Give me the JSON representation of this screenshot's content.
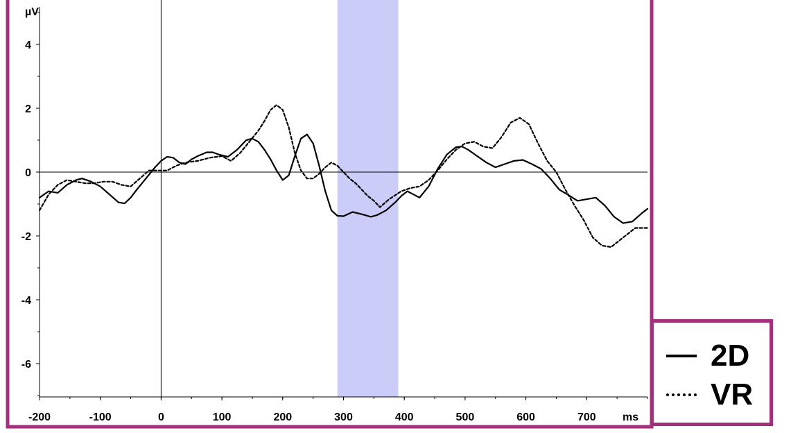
{
  "chart_data": {
    "type": "line",
    "xlabel": "ms",
    "ylabel": "µV",
    "xlim": [
      -200,
      800
    ],
    "ylim": [
      -7,
      5.3
    ],
    "x_ticks": [
      "-200",
      "-100",
      "0",
      "100",
      "200",
      "300",
      "400",
      "500",
      "600",
      "700"
    ],
    "y_ticks": [
      "4",
      "2",
      "0",
      "-2",
      "-4",
      "-6"
    ],
    "highlight_window": [
      290,
      390
    ],
    "colors": {
      "frame": "#a2307c",
      "highlight": "#ccccf8",
      "line": "#000000"
    },
    "series": [
      {
        "name": "2D",
        "style": "solid",
        "x": [
          -200,
          -185,
          -170,
          -155,
          -140,
          -130,
          -115,
          -100,
          -85,
          -70,
          -60,
          -50,
          -40,
          -25,
          -10,
          0,
          10,
          20,
          30,
          40,
          50,
          60,
          75,
          85,
          95,
          110,
          125,
          140,
          150,
          160,
          170,
          180,
          190,
          200,
          210,
          220,
          230,
          240,
          250,
          260,
          270,
          280,
          290,
          300,
          315,
          330,
          345,
          355,
          370,
          385,
          395,
          405,
          415,
          425,
          440,
          455,
          470,
          485,
          495,
          505,
          520,
          535,
          550,
          565,
          580,
          595,
          610,
          625,
          640,
          655,
          670,
          685,
          700,
          715,
          730,
          745,
          760,
          775,
          790,
          800
        ],
        "values": [
          -0.8,
          -0.6,
          -0.65,
          -0.4,
          -0.25,
          -0.2,
          -0.3,
          -0.45,
          -0.7,
          -0.95,
          -0.98,
          -0.8,
          -0.55,
          -0.2,
          0.15,
          0.35,
          0.48,
          0.45,
          0.3,
          0.25,
          0.4,
          0.5,
          0.62,
          0.62,
          0.55,
          0.48,
          0.7,
          1.0,
          1.05,
          0.95,
          0.7,
          0.4,
          0.05,
          -0.25,
          -0.1,
          0.5,
          1.05,
          1.18,
          0.9,
          0.2,
          -0.6,
          -1.2,
          -1.37,
          -1.38,
          -1.25,
          -1.32,
          -1.4,
          -1.35,
          -1.2,
          -0.95,
          -0.75,
          -0.6,
          -0.7,
          -0.8,
          -0.45,
          0.1,
          0.55,
          0.78,
          0.8,
          0.7,
          0.5,
          0.3,
          0.15,
          0.25,
          0.35,
          0.38,
          0.25,
          0.1,
          -0.2,
          -0.55,
          -0.72,
          -0.9,
          -0.85,
          -0.8,
          -1.05,
          -1.4,
          -1.6,
          -1.55,
          -1.3,
          -1.15
        ]
      },
      {
        "name": "VR",
        "style": "dotted",
        "x": [
          -200,
          -185,
          -170,
          -155,
          -140,
          -125,
          -110,
          -95,
          -80,
          -65,
          -50,
          -35,
          -20,
          -5,
          10,
          25,
          40,
          60,
          80,
          100,
          115,
          130,
          145,
          160,
          170,
          180,
          190,
          200,
          210,
          220,
          230,
          240,
          250,
          260,
          270,
          280,
          290,
          300,
          310,
          320,
          330,
          340,
          350,
          360,
          375,
          395,
          410,
          425,
          440,
          455,
          470,
          485,
          500,
          515,
          530,
          545,
          560,
          575,
          590,
          605,
          620,
          635,
          650,
          665,
          680,
          695,
          710,
          725,
          740,
          760,
          780,
          800
        ],
        "values": [
          -1.2,
          -0.7,
          -0.4,
          -0.25,
          -0.3,
          -0.35,
          -0.35,
          -0.3,
          -0.3,
          -0.4,
          -0.45,
          -0.2,
          0.05,
          0.05,
          0.05,
          0.2,
          0.3,
          0.35,
          0.45,
          0.5,
          0.35,
          0.6,
          0.95,
          1.3,
          1.6,
          1.95,
          2.1,
          1.95,
          1.4,
          0.6,
          0.05,
          -0.2,
          -0.2,
          -0.05,
          0.15,
          0.3,
          0.2,
          0.0,
          -0.2,
          -0.35,
          -0.55,
          -0.75,
          -0.9,
          -1.1,
          -0.85,
          -0.6,
          -0.5,
          -0.45,
          -0.25,
          0.05,
          0.4,
          0.7,
          0.9,
          0.95,
          0.8,
          0.75,
          1.1,
          1.55,
          1.7,
          1.5,
          0.9,
          0.35,
          0.0,
          -0.55,
          -1.05,
          -1.5,
          -2.05,
          -2.3,
          -2.35,
          -2.05,
          -1.75,
          -1.75
        ]
      }
    ]
  },
  "legend": {
    "items": [
      {
        "label": "2D",
        "style": "solid"
      },
      {
        "label": "VR",
        "style": "dotted"
      }
    ]
  }
}
